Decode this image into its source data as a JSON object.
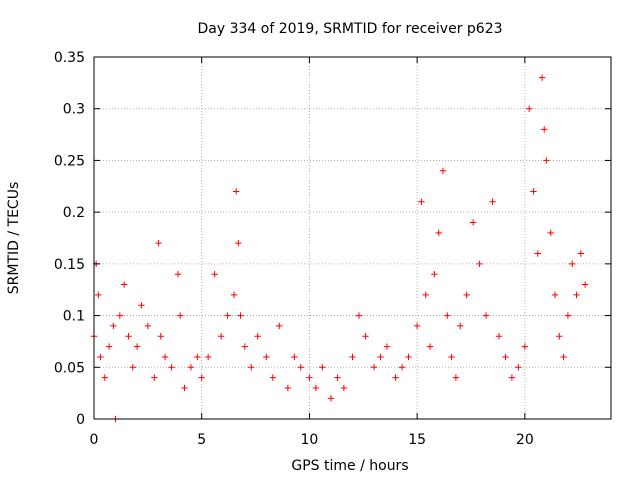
{
  "chart_data": {
    "type": "scatter",
    "title": "Day 334 of 2019, SRMTID for receiver p623",
    "xlabel": "GPS time / hours",
    "ylabel": "SRMTID / TECUs",
    "xlim": [
      0,
      24
    ],
    "ylim": [
      0,
      0.35
    ],
    "xticks": [
      0,
      5,
      10,
      15,
      20
    ],
    "xtick_labels": [
      "0",
      "5",
      "10",
      "15",
      "20"
    ],
    "yticks": [
      0,
      0.05,
      0.1,
      0.15,
      0.2,
      0.25,
      0.3,
      0.35
    ],
    "ytick_labels": [
      "0",
      "0.05",
      "0.1",
      "0.15",
      "0.2",
      "0.25",
      "0.3",
      "0.35"
    ],
    "grid": true,
    "marker": "+",
    "color": "#ff0000",
    "series": [
      {
        "name": "SRMTID",
        "description_trend_hours": [
          0,
          1,
          2,
          3,
          4,
          5,
          6,
          6.7,
          7,
          8,
          9,
          10,
          11,
          12,
          13,
          14,
          15,
          15.5,
          16,
          16.3,
          17,
          18,
          18.5,
          19,
          20,
          20.5,
          21,
          21.5,
          22,
          23
        ],
        "x": [
          0.0,
          0.1,
          0.2,
          0.3,
          0.5,
          0.7,
          0.9,
          1.0,
          1.2,
          1.4,
          1.6,
          1.8,
          2.0,
          2.2,
          2.5,
          2.8,
          3.0,
          3.1,
          3.3,
          3.6,
          3.9,
          4.0,
          4.2,
          4.5,
          4.8,
          5.0,
          5.3,
          5.6,
          5.9,
          6.2,
          6.5,
          6.6,
          6.7,
          6.8,
          7.0,
          7.3,
          7.6,
          8.0,
          8.3,
          8.6,
          9.0,
          9.3,
          9.6,
          10.0,
          10.3,
          10.6,
          11.0,
          11.3,
          11.6,
          12.0,
          12.3,
          12.6,
          13.0,
          13.3,
          13.6,
          14.0,
          14.3,
          14.6,
          15.0,
          15.2,
          15.4,
          15.6,
          15.8,
          16.0,
          16.2,
          16.4,
          16.6,
          16.8,
          17.0,
          17.3,
          17.6,
          17.9,
          18.2,
          18.5,
          18.8,
          19.1,
          19.4,
          19.7,
          20.0,
          20.2,
          20.4,
          20.6,
          20.8,
          20.9,
          21.0,
          21.2,
          21.4,
          21.6,
          21.8,
          22.0,
          22.2,
          22.4,
          22.6,
          22.8
        ],
        "y": [
          0.08,
          0.15,
          0.12,
          0.06,
          0.04,
          0.07,
          0.09,
          0.0,
          0.1,
          0.13,
          0.08,
          0.05,
          0.07,
          0.11,
          0.09,
          0.04,
          0.17,
          0.08,
          0.06,
          0.05,
          0.14,
          0.1,
          0.03,
          0.05,
          0.06,
          0.04,
          0.06,
          0.14,
          0.08,
          0.1,
          0.12,
          0.22,
          0.17,
          0.1,
          0.07,
          0.05,
          0.08,
          0.06,
          0.04,
          0.09,
          0.03,
          0.06,
          0.05,
          0.04,
          0.03,
          0.05,
          0.02,
          0.04,
          0.03,
          0.06,
          0.1,
          0.08,
          0.05,
          0.06,
          0.07,
          0.04,
          0.05,
          0.06,
          0.09,
          0.21,
          0.12,
          0.07,
          0.14,
          0.18,
          0.24,
          0.1,
          0.06,
          0.04,
          0.09,
          0.12,
          0.19,
          0.15,
          0.1,
          0.21,
          0.08,
          0.06,
          0.04,
          0.05,
          0.07,
          0.3,
          0.22,
          0.16,
          0.33,
          0.28,
          0.25,
          0.18,
          0.12,
          0.08,
          0.06,
          0.1,
          0.15,
          0.12,
          0.16,
          0.13
        ]
      }
    ]
  }
}
